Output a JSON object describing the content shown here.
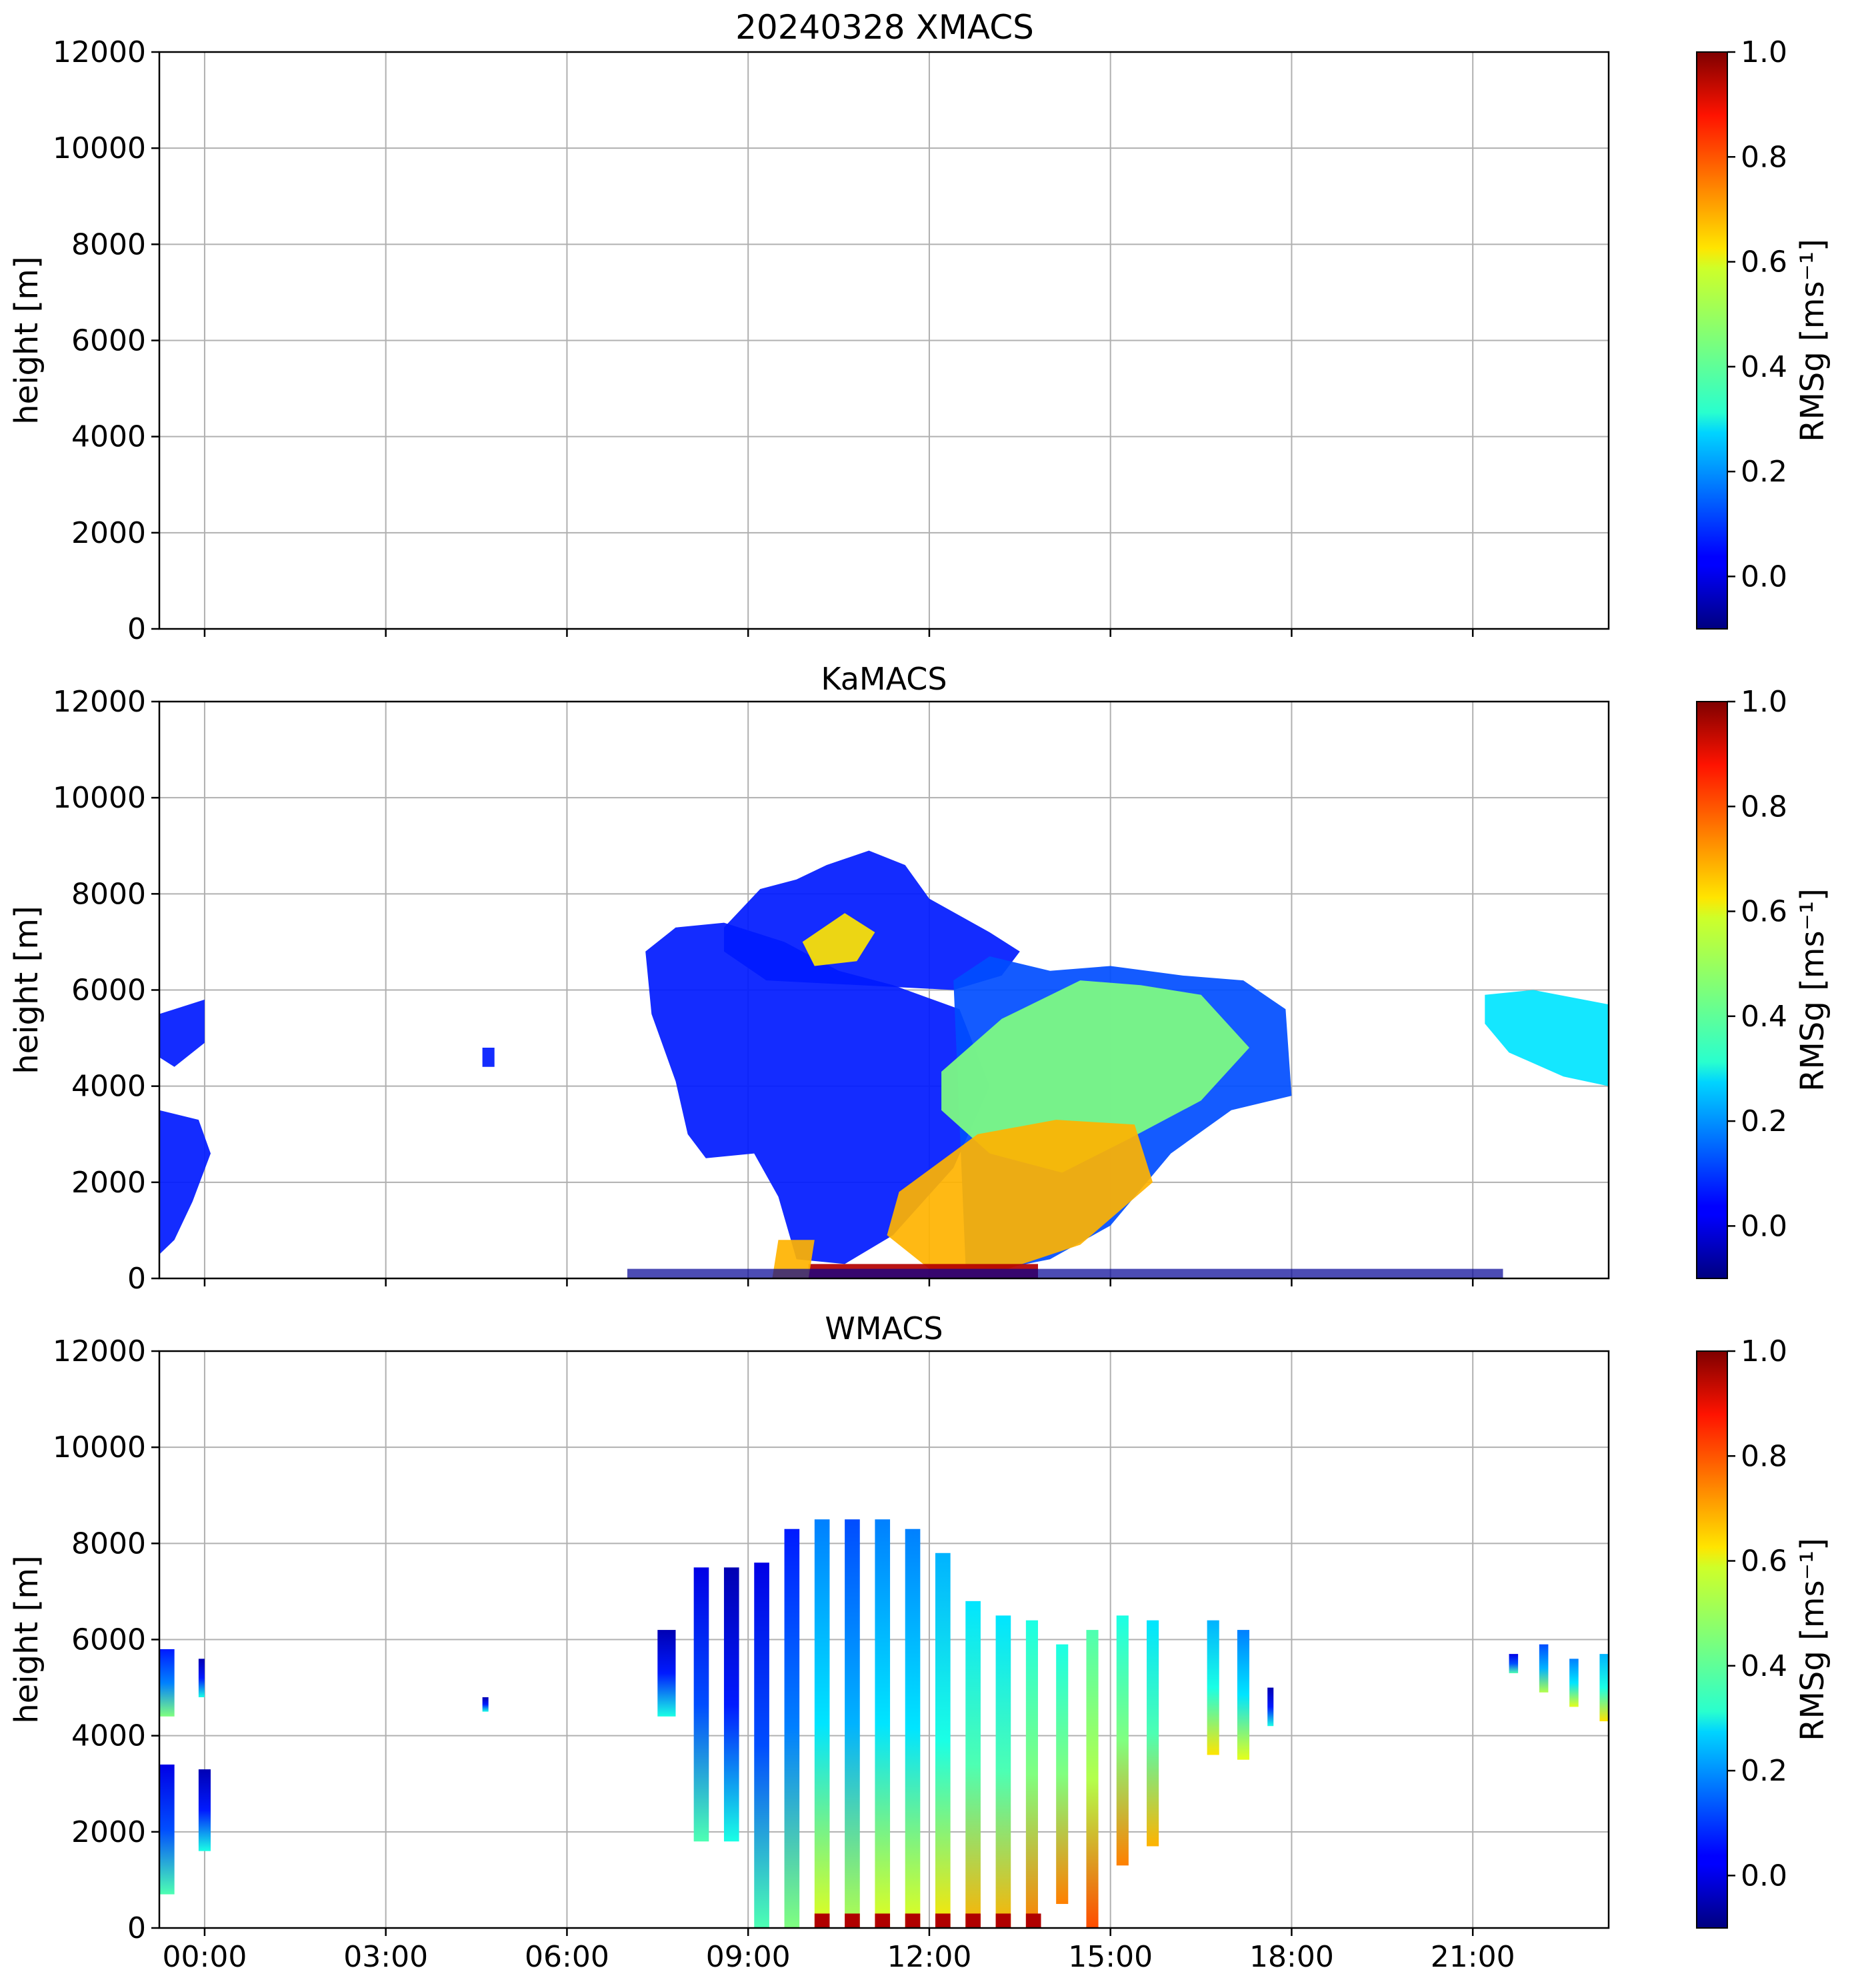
{
  "figure": {
    "title": "20240328 XMACS"
  },
  "chart_data": [
    {
      "type": "heatmap",
      "title": "20240328 XMACS",
      "xlabel": "",
      "ylabel": "height [m]",
      "xlim_hours": [
        -0.75,
        23.25
      ],
      "ylim": [
        0,
        12000
      ],
      "yticks": [
        0,
        2000,
        4000,
        6000,
        8000,
        10000,
        12000
      ],
      "xticks_hours": [
        0,
        3,
        6,
        9,
        12,
        15,
        18,
        21
      ],
      "xticklabels": [],
      "grid": true,
      "colorbar": {
        "label": "RMSg [ms⁻¹]",
        "range": [
          -0.1,
          1.0
        ],
        "ticks": [
          "0.0",
          "0.2",
          "0.4",
          "0.6",
          "0.8",
          "1.0"
        ]
      },
      "echoes": []
    },
    {
      "type": "heatmap",
      "title": "KaMACS",
      "xlabel": "",
      "ylabel": "height [m]",
      "xlim_hours": [
        -0.75,
        23.25
      ],
      "ylim": [
        0,
        12000
      ],
      "yticks": [
        0,
        2000,
        4000,
        6000,
        8000,
        10000,
        12000
      ],
      "xticks_hours": [
        0,
        3,
        6,
        9,
        12,
        15,
        18,
        21
      ],
      "xticklabels": [],
      "grid": true,
      "colorbar": {
        "label": "RMSg [ms⁻¹]",
        "range": [
          -0.1,
          1.0
        ],
        "ticks": [
          "0.0",
          "0.2",
          "0.4",
          "0.6",
          "0.8",
          "1.0"
        ]
      },
      "echoes": [
        {
          "name": "upper-cloud-dome",
          "level": 0.15,
          "hours": [
            8.6,
            9.2,
            9.8,
            10.3,
            11.0,
            11.6,
            12.0,
            13.0,
            13.5,
            13.2,
            12.4,
            9.3,
            8.6
          ],
          "heights": [
            7300,
            8100,
            8300,
            8600,
            8900,
            8600,
            7900,
            7200,
            6800,
            6300,
            6000,
            6200,
            6800
          ]
        },
        {
          "name": "main-cloud-left",
          "level": 0.15,
          "hours": [
            7.3,
            7.8,
            8.6,
            9.6,
            10.5,
            11.4,
            12.5,
            13.0,
            12.4,
            11.4,
            10.6,
            9.8,
            9.5,
            9.1,
            8.3,
            8.0,
            7.8,
            7.4
          ],
          "heights": [
            6800,
            7300,
            7400,
            7000,
            6400,
            6100,
            5600,
            4000,
            2300,
            900,
            300,
            400,
            1700,
            2600,
            2500,
            3000,
            4100,
            5500
          ]
        },
        {
          "name": "main-cloud-right",
          "level": 0.2,
          "hours": [
            12.4,
            13.0,
            14.0,
            15.0,
            16.2,
            17.2,
            17.9,
            18.0,
            17.0,
            16.0,
            15.0,
            14.0,
            13.2,
            12.6
          ],
          "heights": [
            6200,
            6700,
            6400,
            6500,
            6300,
            6200,
            5600,
            3800,
            3500,
            2600,
            1100,
            400,
            200,
            300
          ]
        },
        {
          "name": "mid-level-turbulent-band",
          "level": 0.5,
          "hours": [
            12.2,
            13.2,
            14.5,
            15.5,
            16.5,
            17.3,
            16.5,
            15.3,
            14.2,
            13.0,
            12.2
          ],
          "heights": [
            4300,
            5400,
            6200,
            6100,
            5900,
            4800,
            3700,
            2900,
            2200,
            2600,
            3500
          ]
        },
        {
          "name": "upper-turbulent-patch",
          "level": 0.65,
          "hours": [
            9.9,
            10.6,
            11.1,
            10.8,
            10.1
          ],
          "heights": [
            7000,
            7600,
            7200,
            6600,
            6500
          ]
        },
        {
          "name": "lower-turbulent-layer",
          "level": 0.7,
          "hours": [
            11.5,
            12.8,
            14.1,
            15.4,
            15.7,
            14.5,
            13.3,
            12.0,
            11.3
          ],
          "heights": [
            1800,
            3000,
            3300,
            3200,
            2000,
            700,
            200,
            200,
            900
          ]
        },
        {
          "name": "near-surface-strong-layer",
          "level": 0.95,
          "hours": [
            10.0,
            13.8,
            13.8,
            10.0
          ],
          "heights": [
            0,
            0,
            300,
            300
          ]
        },
        {
          "name": "boundary-layer-left",
          "level": 0.7,
          "hours": [
            9.4,
            10.0,
            10.1,
            9.5
          ],
          "heights": [
            0,
            0,
            800,
            800
          ]
        },
        {
          "name": "early-lower-cloud",
          "level": 0.15,
          "hours": [
            -0.75,
            -0.1,
            0.1,
            -0.2,
            -0.5,
            -0.75
          ],
          "heights": [
            3500,
            3300,
            2600,
            1600,
            800,
            500
          ]
        },
        {
          "name": "early-upper-cloud",
          "level": 0.15,
          "hours": [
            -0.75,
            0.0,
            0.0,
            -0.5,
            -0.75
          ],
          "heights": [
            5500,
            5800,
            4900,
            4400,
            4600
          ]
        },
        {
          "name": "late-cloud",
          "level": 0.35,
          "hours": [
            21.2,
            22.0,
            23.25,
            23.25,
            22.5,
            21.6,
            21.2
          ],
          "heights": [
            5900,
            6000,
            5700,
            4000,
            4200,
            4700,
            5300
          ]
        },
        {
          "name": "small-echo",
          "level": 0.15,
          "hours": [
            4.6,
            4.8,
            4.8,
            4.6
          ],
          "heights": [
            4400,
            4400,
            4800,
            4800
          ]
        },
        {
          "name": "surface-clutter",
          "level": 0.02,
          "hours": [
            7.0,
            21.5,
            21.5,
            7.0
          ],
          "heights": [
            0,
            0,
            200,
            200
          ]
        }
      ]
    },
    {
      "type": "heatmap",
      "title": "WMACS",
      "xlabel": "",
      "ylabel": "height [m]",
      "xlim_hours": [
        -0.75,
        23.25
      ],
      "ylim": [
        0,
        12000
      ],
      "yticks": [
        0,
        2000,
        4000,
        6000,
        8000,
        10000,
        12000
      ],
      "xticks_hours": [
        0,
        3,
        6,
        9,
        12,
        15,
        18,
        21
      ],
      "xticklabels": [
        "00:00",
        "03:00",
        "06:00",
        "09:00",
        "12:00",
        "15:00",
        "18:00",
        "21:00"
      ],
      "grid": true,
      "colorbar": {
        "label": "RMSg [ms⁻¹]",
        "range": [
          -0.1,
          1.0
        ],
        "ticks": [
          "0.0",
          "0.2",
          "0.4",
          "0.6",
          "0.8",
          "1.0"
        ]
      },
      "echo_bands": [
        {
          "start": 7.5,
          "end": 7.8,
          "bottom": 4400,
          "top": 6200,
          "level": 0.15
        },
        {
          "start": 8.1,
          "end": 8.35,
          "bottom": 1800,
          "top": 7500,
          "level": 0.2
        },
        {
          "start": 8.6,
          "end": 8.85,
          "bottom": 1800,
          "top": 7500,
          "level": 0.15
        },
        {
          "start": 9.1,
          "end": 9.35,
          "bottom": 0,
          "top": 7600,
          "level": 0.2
        },
        {
          "start": 9.6,
          "end": 9.85,
          "bottom": 0,
          "top": 8300,
          "level": 0.25
        },
        {
          "start": 10.1,
          "end": 10.35,
          "bottom": 0,
          "top": 8500,
          "level": 0.35
        },
        {
          "start": 10.6,
          "end": 10.85,
          "bottom": 0,
          "top": 8500,
          "level": 0.3
        },
        {
          "start": 11.1,
          "end": 11.35,
          "bottom": 0,
          "top": 8500,
          "level": 0.35
        },
        {
          "start": 11.6,
          "end": 11.85,
          "bottom": 0,
          "top": 8300,
          "level": 0.35
        },
        {
          "start": 12.1,
          "end": 12.35,
          "bottom": 0,
          "top": 7800,
          "level": 0.4
        },
        {
          "start": 12.6,
          "end": 12.85,
          "bottom": 0,
          "top": 6800,
          "level": 0.45
        },
        {
          "start": 13.1,
          "end": 13.35,
          "bottom": 0,
          "top": 6500,
          "level": 0.45
        },
        {
          "start": 13.6,
          "end": 13.8,
          "bottom": 0,
          "top": 6400,
          "level": 0.5
        },
        {
          "start": 14.1,
          "end": 14.3,
          "bottom": 500,
          "top": 5900,
          "level": 0.5
        },
        {
          "start": 14.6,
          "end": 14.8,
          "bottom": 0,
          "top": 6200,
          "level": 0.55
        },
        {
          "start": 15.1,
          "end": 15.3,
          "bottom": 1300,
          "top": 6500,
          "level": 0.5
        },
        {
          "start": 15.6,
          "end": 15.8,
          "bottom": 1700,
          "top": 6400,
          "level": 0.45
        },
        {
          "start": 16.6,
          "end": 16.8,
          "bottom": 3600,
          "top": 6400,
          "level": 0.4
        },
        {
          "start": 17.1,
          "end": 17.3,
          "bottom": 3500,
          "top": 6200,
          "level": 0.35
        },
        {
          "start": 17.6,
          "end": 17.7,
          "bottom": 4200,
          "top": 5000,
          "level": 0.15
        },
        {
          "start": -0.75,
          "end": -0.5,
          "bottom": 4400,
          "top": 5800,
          "level": 0.25
        },
        {
          "start": -0.75,
          "end": -0.5,
          "bottom": 700,
          "top": 3400,
          "level": 0.2
        },
        {
          "start": -0.1,
          "end": 0.0,
          "bottom": 4800,
          "top": 5600,
          "level": 0.15
        },
        {
          "start": -0.1,
          "end": 0.1,
          "bottom": 1600,
          "top": 3300,
          "level": 0.15
        },
        {
          "start": 4.6,
          "end": 4.7,
          "bottom": 4500,
          "top": 4800,
          "level": 0.15
        },
        {
          "start": 21.6,
          "end": 21.75,
          "bottom": 5300,
          "top": 5700,
          "level": 0.2
        },
        {
          "start": 22.1,
          "end": 22.25,
          "bottom": 4900,
          "top": 5900,
          "level": 0.3
        },
        {
          "start": 22.6,
          "end": 22.75,
          "bottom": 4600,
          "top": 5600,
          "level": 0.35
        },
        {
          "start": 23.1,
          "end": 23.25,
          "bottom": 4300,
          "top": 5700,
          "level": 0.4
        }
      ],
      "surface_strong_hours": [
        10.1,
        10.6,
        11.1,
        11.6,
        12.1,
        12.6,
        13.1,
        13.6
      ]
    }
  ]
}
